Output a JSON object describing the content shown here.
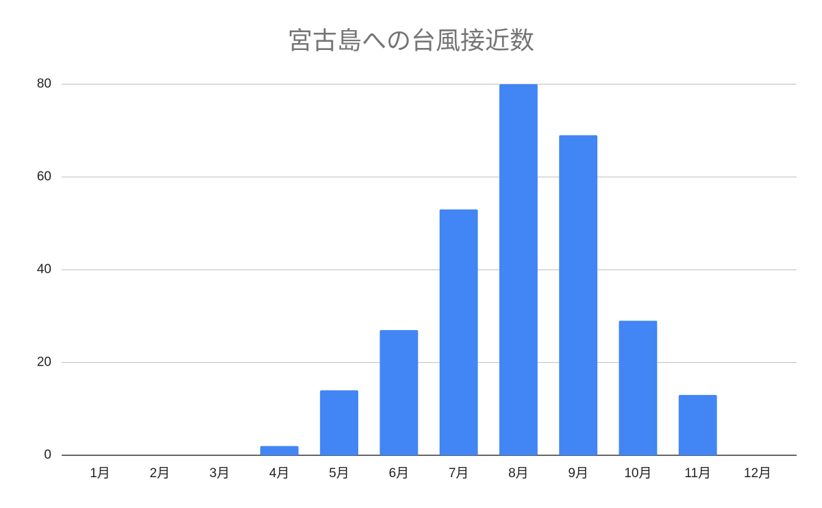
{
  "chart_data": {
    "type": "bar",
    "title": "宮古島への台風接近数",
    "categories": [
      "1月",
      "2月",
      "3月",
      "4月",
      "5月",
      "6月",
      "7月",
      "8月",
      "9月",
      "10月",
      "11月",
      "12月"
    ],
    "values": [
      0,
      0,
      0,
      2,
      14,
      27,
      53,
      80,
      69,
      29,
      13,
      0
    ],
    "color": "#4285f4",
    "ylim": [
      0,
      80
    ],
    "yticks": [
      0,
      20,
      40,
      60,
      80
    ],
    "grid": true
  }
}
